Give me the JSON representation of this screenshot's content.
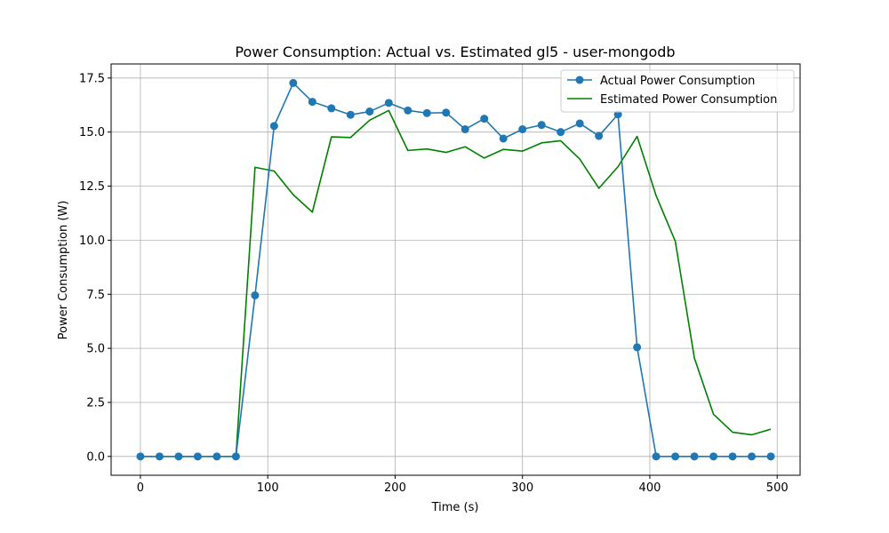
{
  "chart_data": {
    "type": "line",
    "title": "Power Consumption: Actual vs. Estimated gl5 - user-mongodb",
    "xlabel": "Time (s)",
    "ylabel": "Power Consumption (W)",
    "xlim": [
      -23,
      518
    ],
    "ylim": [
      -0.87,
      18.15
    ],
    "xticks": [
      0,
      100,
      200,
      300,
      400,
      500
    ],
    "yticks": [
      0.0,
      2.5,
      5.0,
      7.5,
      10.0,
      12.5,
      15.0,
      17.5
    ],
    "xtick_labels": [
      "0",
      "100",
      "200",
      "300",
      "400",
      "500"
    ],
    "ytick_labels": [
      "0.0",
      "2.5",
      "5.0",
      "7.5",
      "10.0",
      "12.5",
      "15.0",
      "17.5"
    ],
    "grid": true,
    "legend_position": "top-right",
    "x": [
      0,
      15,
      30,
      45,
      60,
      75,
      90,
      105,
      120,
      135,
      150,
      165,
      180,
      195,
      210,
      225,
      240,
      255,
      270,
      285,
      300,
      315,
      330,
      345,
      360,
      375,
      390,
      405,
      420,
      435,
      450,
      465,
      480,
      495
    ],
    "series": [
      {
        "name": "Actual Power Consumption",
        "color": "#1f77b4",
        "marker": "circle",
        "values": [
          0,
          0,
          0,
          0,
          0,
          0,
          7.45,
          15.28,
          17.27,
          16.4,
          16.1,
          15.8,
          15.95,
          16.35,
          16.0,
          15.88,
          15.9,
          15.13,
          15.62,
          14.7,
          15.13,
          15.33,
          15.0,
          15.4,
          14.82,
          15.82,
          5.05,
          0,
          0,
          0,
          0,
          0,
          0,
          0
        ]
      },
      {
        "name": "Estimated Power Consumption",
        "color": "#008000",
        "marker": "none",
        "values": [
          0,
          0,
          0,
          0,
          0,
          0,
          13.37,
          13.2,
          12.1,
          11.3,
          14.78,
          14.75,
          15.55,
          16.0,
          14.15,
          14.22,
          14.06,
          14.32,
          13.8,
          14.2,
          14.12,
          14.5,
          14.6,
          13.75,
          12.4,
          13.4,
          14.8,
          12.05,
          9.95,
          4.55,
          1.95,
          1.12,
          1.0,
          1.26
        ]
      }
    ]
  }
}
